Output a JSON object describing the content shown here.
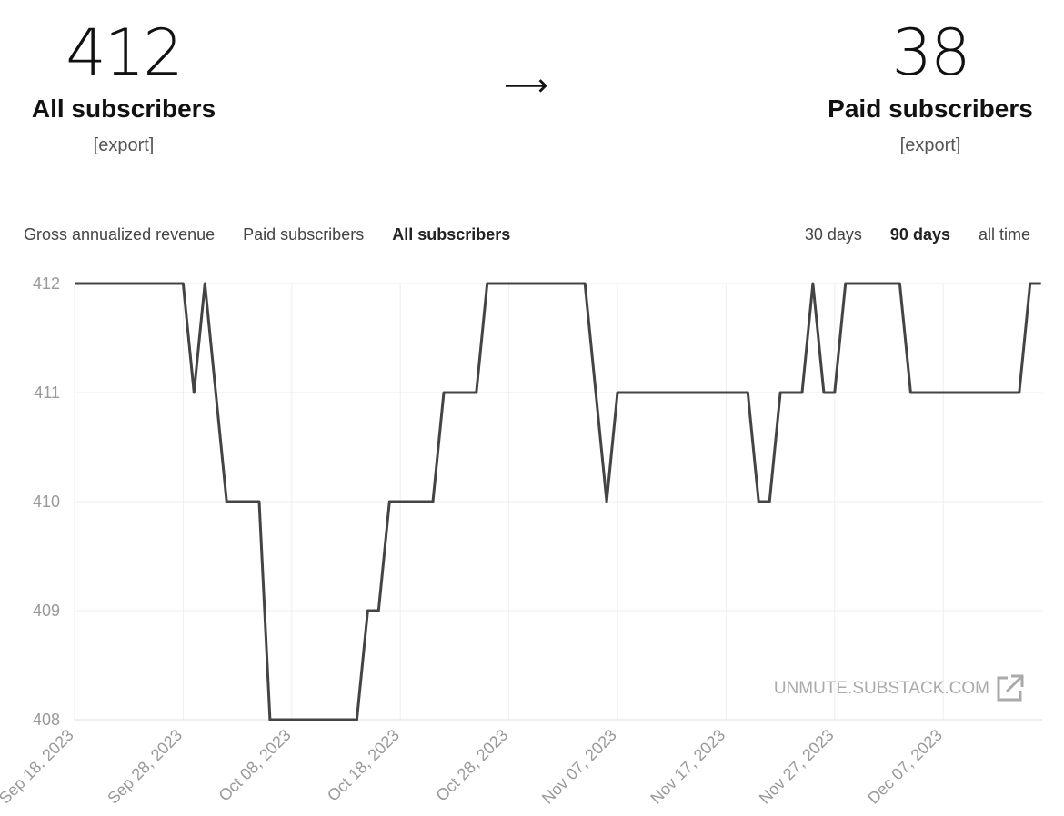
{
  "header": {
    "left": {
      "value": "412",
      "label": "All subscribers",
      "export": "[export]"
    },
    "arrow": "⟶",
    "right": {
      "value": "38",
      "label": "Paid subscribers",
      "export": "[export]"
    }
  },
  "tabs": [
    {
      "label": "Gross annualized revenue",
      "active": false
    },
    {
      "label": "Paid subscribers",
      "active": false
    },
    {
      "label": "All subscribers",
      "active": true
    }
  ],
  "ranges": [
    {
      "label": "30 days",
      "active": false
    },
    {
      "label": "90 days",
      "active": true
    },
    {
      "label": "all time",
      "active": false
    }
  ],
  "watermark": "UNMUTE.SUBSTACK.COM",
  "colors": {
    "line": "#444444",
    "grid": "#eeeeee",
    "tick": "#999999"
  },
  "chart_data": {
    "type": "line",
    "title": "",
    "xlabel": "",
    "ylabel": "",
    "ylim": [
      408,
      412
    ],
    "yticks": [
      "412",
      "411",
      "410",
      "409",
      "408"
    ],
    "xticks": [
      "Sep 18, 2023",
      "Sep 28, 2023",
      "Oct 08, 2023",
      "Oct 18, 2023",
      "Oct 28, 2023",
      "Nov 07, 2023",
      "Nov 17, 2023",
      "Nov 27, 2023",
      "Dec 07, 2023"
    ],
    "grid": true,
    "series": [
      {
        "values": [
          {
            "x": "2023-09-18",
            "y": 412
          },
          {
            "x": "2023-09-28",
            "y": 412
          },
          {
            "x": "2023-09-29",
            "y": 411
          },
          {
            "x": "2023-09-30",
            "y": 412
          },
          {
            "x": "2023-10-02",
            "y": 410
          },
          {
            "x": "2023-10-05",
            "y": 410
          },
          {
            "x": "2023-10-06",
            "y": 408
          },
          {
            "x": "2023-10-14",
            "y": 408
          },
          {
            "x": "2023-10-15",
            "y": 409
          },
          {
            "x": "2023-10-16",
            "y": 409
          },
          {
            "x": "2023-10-17",
            "y": 410
          },
          {
            "x": "2023-10-21",
            "y": 410
          },
          {
            "x": "2023-10-22",
            "y": 411
          },
          {
            "x": "2023-10-25",
            "y": 411
          },
          {
            "x": "2023-10-26",
            "y": 412
          },
          {
            "x": "2023-11-04",
            "y": 412
          },
          {
            "x": "2023-11-06",
            "y": 410
          },
          {
            "x": "2023-11-07",
            "y": 411
          },
          {
            "x": "2023-11-19",
            "y": 411
          },
          {
            "x": "2023-11-20",
            "y": 410
          },
          {
            "x": "2023-11-21",
            "y": 410
          },
          {
            "x": "2023-11-22",
            "y": 411
          },
          {
            "x": "2023-11-24",
            "y": 411
          },
          {
            "x": "2023-11-25",
            "y": 412
          },
          {
            "x": "2023-11-26",
            "y": 411
          },
          {
            "x": "2023-11-27",
            "y": 411
          },
          {
            "x": "2023-11-28",
            "y": 412
          },
          {
            "x": "2023-12-03",
            "y": 412
          },
          {
            "x": "2023-12-04",
            "y": 411
          },
          {
            "x": "2023-12-14",
            "y": 411
          },
          {
            "x": "2023-12-15",
            "y": 412
          },
          {
            "x": "2023-12-16",
            "y": 412
          }
        ]
      }
    ]
  }
}
